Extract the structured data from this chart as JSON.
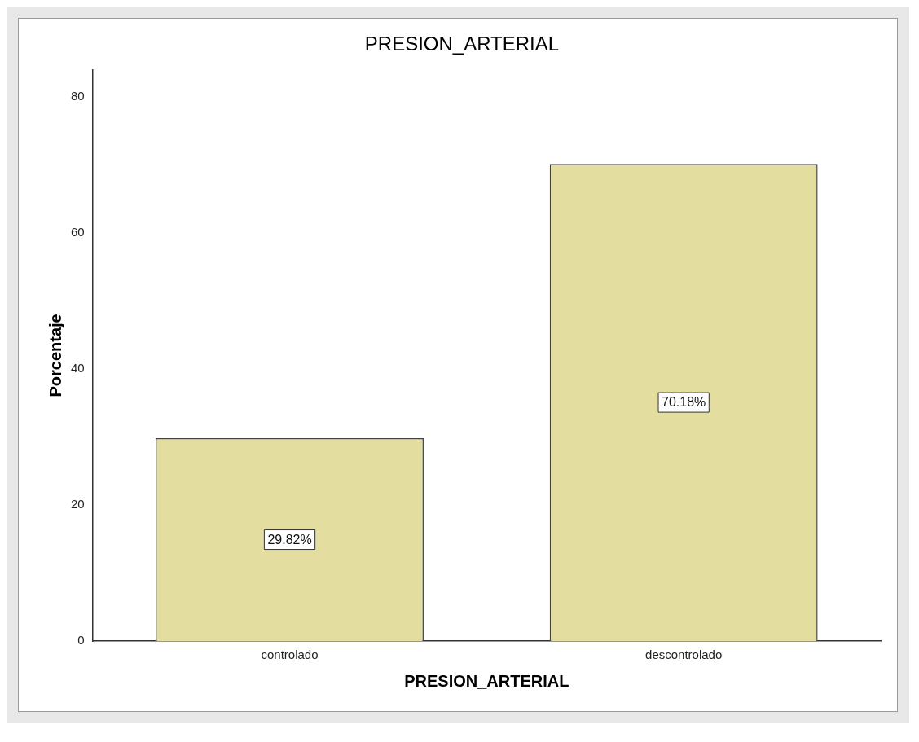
{
  "chart_data": {
    "type": "bar",
    "title": "PRESION_ARTERIAL",
    "xlabel": "PRESION_ARTERIAL",
    "ylabel": "Porcentaje",
    "categories": [
      "controlado",
      "descontrolado"
    ],
    "values": [
      29.82,
      70.18
    ],
    "value_labels": [
      "29.82%",
      "70.18%"
    ],
    "color": "#e3dea0",
    "ylim": [
      0,
      84
    ],
    "yticks": [
      0,
      20,
      40,
      60,
      80
    ],
    "grid": false,
    "legend": false
  }
}
